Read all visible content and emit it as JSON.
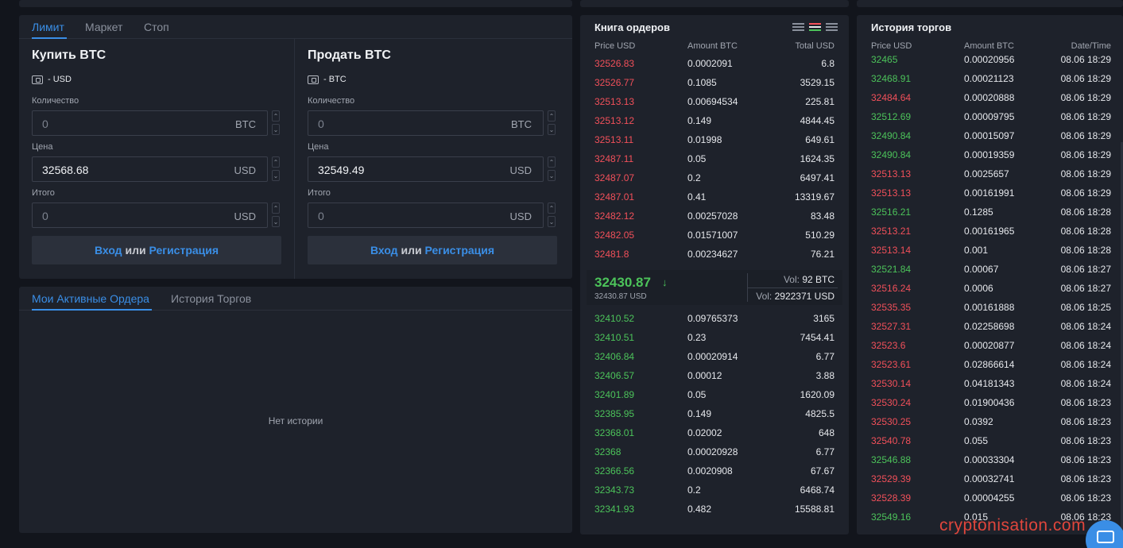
{
  "form": {
    "tabs": [
      "Лимит",
      "Маркет",
      "Стоп"
    ],
    "buy": {
      "title": "Купить BTC",
      "wallet": "- USD",
      "qty_label": "Количество",
      "qty_value": "0",
      "qty_unit": "BTC",
      "price_label": "Цена",
      "price_value": "32568.68",
      "price_unit": "USD",
      "total_label": "Итого",
      "total_value": "0",
      "total_unit": "USD"
    },
    "sell": {
      "title": "Продать BTC",
      "wallet": "- BTC",
      "qty_label": "Количество",
      "qty_value": "0",
      "qty_unit": "BTC",
      "price_label": "Цена",
      "price_value": "32549.49",
      "price_unit": "USD",
      "total_label": "Итого",
      "total_value": "0",
      "total_unit": "USD"
    },
    "login": {
      "login": "Вход",
      "or": "или",
      "register": "Регистрация"
    }
  },
  "orders": {
    "tabs": [
      "Мои Активные Ордера",
      "История Торгов"
    ],
    "empty": "Нет истории"
  },
  "book": {
    "title": "Книга ордеров",
    "headers": {
      "price": "Price USD",
      "amount": "Amount BTC",
      "total": "Total USD"
    },
    "asks": [
      [
        "32526.83",
        "0.0002091",
        "6.8"
      ],
      [
        "32526.77",
        "0.1085",
        "3529.15"
      ],
      [
        "32513.13",
        "0.00694534",
        "225.81"
      ],
      [
        "32513.12",
        "0.149",
        "4844.45"
      ],
      [
        "32513.11",
        "0.01998",
        "649.61"
      ],
      [
        "32487.11",
        "0.05",
        "1624.35"
      ],
      [
        "32487.07",
        "0.2",
        "6497.41"
      ],
      [
        "32487.01",
        "0.41",
        "13319.67"
      ],
      [
        "32482.12",
        "0.00257028",
        "83.48"
      ],
      [
        "32482.05",
        "0.01571007",
        "510.29"
      ],
      [
        "32481.8",
        "0.00234627",
        "76.21"
      ]
    ],
    "last": {
      "price": "32430.87",
      "arrow": "↓",
      "sub": "32430.87 USD"
    },
    "vol_btc": {
      "k": "Vol:",
      "v": "92 BTC"
    },
    "vol_usd": {
      "k": "Vol:",
      "v": "2922371 USD"
    },
    "bids": [
      [
        "32410.52",
        "0.09765373",
        "3165"
      ],
      [
        "32410.51",
        "0.23",
        "7454.41"
      ],
      [
        "32406.84",
        "0.00020914",
        "6.77"
      ],
      [
        "32406.57",
        "0.00012",
        "3.88"
      ],
      [
        "32401.89",
        "0.05",
        "1620.09"
      ],
      [
        "32385.95",
        "0.149",
        "4825.5"
      ],
      [
        "32368.01",
        "0.02002",
        "648"
      ],
      [
        "32368",
        "0.00020928",
        "6.77"
      ],
      [
        "32366.56",
        "0.0020908",
        "67.67"
      ],
      [
        "32343.73",
        "0.2",
        "6468.74"
      ],
      [
        "32341.93",
        "0.482",
        "15588.81"
      ]
    ],
    "colors": {
      "ask": "#f2505a",
      "bid": "#4cc35a"
    }
  },
  "history": {
    "title": "История торгов",
    "headers": {
      "price": "Price USD",
      "amount": "Amount BTC",
      "date": "Date/Time"
    },
    "rows": [
      [
        "32465",
        "0.00020956",
        "08.06 18:29",
        "buy"
      ],
      [
        "32468.91",
        "0.00021123",
        "08.06 18:29",
        "buy"
      ],
      [
        "32484.64",
        "0.00020888",
        "08.06 18:29",
        "sell"
      ],
      [
        "32512.69",
        "0.00009795",
        "08.06 18:29",
        "buy"
      ],
      [
        "32490.84",
        "0.00015097",
        "08.06 18:29",
        "buy"
      ],
      [
        "32490.84",
        "0.00019359",
        "08.06 18:29",
        "buy"
      ],
      [
        "32513.13",
        "0.0025657",
        "08.06 18:29",
        "sell"
      ],
      [
        "32513.13",
        "0.00161991",
        "08.06 18:29",
        "sell"
      ],
      [
        "32516.21",
        "0.1285",
        "08.06 18:28",
        "buy"
      ],
      [
        "32513.21",
        "0.00161965",
        "08.06 18:28",
        "sell"
      ],
      [
        "32513.14",
        "0.001",
        "08.06 18:28",
        "sell"
      ],
      [
        "32521.84",
        "0.00067",
        "08.06 18:27",
        "buy"
      ],
      [
        "32516.24",
        "0.0006",
        "08.06 18:27",
        "sell"
      ],
      [
        "32535.35",
        "0.00161888",
        "08.06 18:25",
        "sell"
      ],
      [
        "32527.31",
        "0.02258698",
        "08.06 18:24",
        "sell"
      ],
      [
        "32523.6",
        "0.00020877",
        "08.06 18:24",
        "sell"
      ],
      [
        "32523.61",
        "0.02866614",
        "08.06 18:24",
        "sell"
      ],
      [
        "32530.14",
        "0.04181343",
        "08.06 18:24",
        "sell"
      ],
      [
        "32530.24",
        "0.01900436",
        "08.06 18:23",
        "sell"
      ],
      [
        "32530.25",
        "0.0392",
        "08.06 18:23",
        "sell"
      ],
      [
        "32540.78",
        "0.055",
        "08.06 18:23",
        "sell"
      ],
      [
        "32546.88",
        "0.00033304",
        "08.06 18:23",
        "buy"
      ],
      [
        "32529.39",
        "0.00032741",
        "08.06 18:23",
        "sell"
      ],
      [
        "32528.39",
        "0.00004255",
        "08.06 18:23",
        "sell"
      ],
      [
        "32549.16",
        "0.015",
        "08.06 18:23",
        "buy"
      ]
    ]
  },
  "watermark": "cryptonisation.com"
}
